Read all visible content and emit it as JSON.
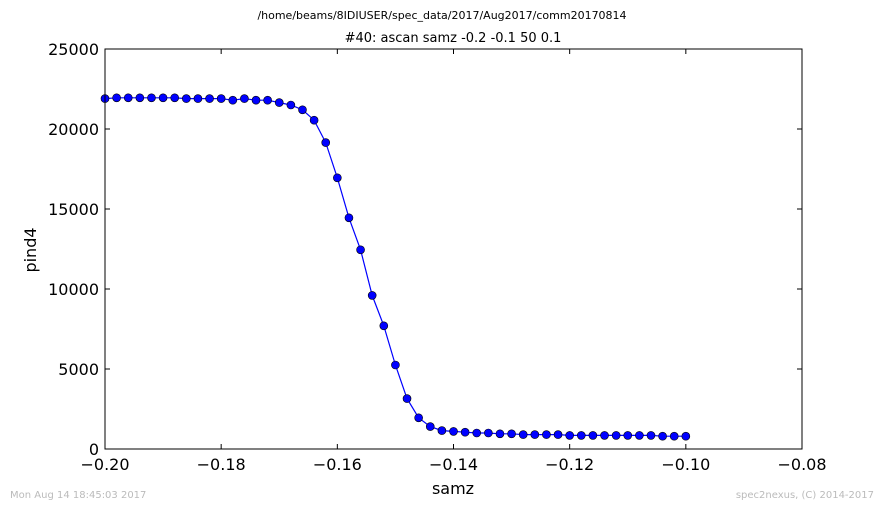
{
  "page": {
    "suptitle": "/home/beams/8IDIUSER/spec_data/2017/Aug2017/comm20170814",
    "footer_left": "Mon Aug 14 18:45:03 2017",
    "footer_right": "spec2nexus, (C) 2014-2017"
  },
  "chart_data": {
    "type": "line",
    "title": "#40: ascan  samz -0.2 -0.1  50 0.1",
    "xlabel": "samz",
    "ylabel": "pind4",
    "xlim": [
      -0.2,
      -0.08
    ],
    "ylim": [
      0,
      25000
    ],
    "xticks": [
      -0.2,
      -0.18,
      -0.16,
      -0.14,
      -0.12,
      -0.1,
      -0.08
    ],
    "xtick_labels": [
      "−0.20",
      "−0.18",
      "−0.16",
      "−0.14",
      "−0.12",
      "−0.10",
      "−0.08"
    ],
    "yticks": [
      0,
      5000,
      10000,
      15000,
      20000,
      25000
    ],
    "ytick_labels": [
      "0",
      "5000",
      "10000",
      "15000",
      "20000",
      "25000"
    ],
    "grid": false,
    "color": "#0000ff",
    "marker": "circle",
    "series": [
      {
        "x": [
          -0.2,
          -0.198,
          -0.196,
          -0.194,
          -0.192,
          -0.19,
          -0.188,
          -0.186,
          -0.184,
          -0.182,
          -0.18,
          -0.178,
          -0.176,
          -0.174,
          -0.172,
          -0.17,
          -0.168,
          -0.166,
          -0.164,
          -0.162,
          -0.16,
          -0.158,
          -0.156,
          -0.154,
          -0.152,
          -0.15,
          -0.148,
          -0.146,
          -0.144,
          -0.142,
          -0.14,
          -0.138,
          -0.136,
          -0.134,
          -0.132,
          -0.13,
          -0.128,
          -0.126,
          -0.124,
          -0.122,
          -0.12,
          -0.118,
          -0.116,
          -0.114,
          -0.112,
          -0.11,
          -0.108,
          -0.106,
          -0.104,
          -0.102,
          -0.1
        ],
        "y": [
          21900,
          21950,
          21950,
          21950,
          21950,
          21950,
          21950,
          21900,
          21900,
          21900,
          21900,
          21800,
          21900,
          21800,
          21800,
          21650,
          21500,
          21200,
          20550,
          19150,
          16950,
          14450,
          12450,
          9600,
          7700,
          5250,
          3150,
          1950,
          1400,
          1150,
          1100,
          1050,
          1000,
          1000,
          950,
          950,
          900,
          900,
          900,
          900,
          850,
          850,
          850,
          850,
          850,
          850,
          850,
          850,
          800,
          800,
          800
        ]
      }
    ]
  }
}
